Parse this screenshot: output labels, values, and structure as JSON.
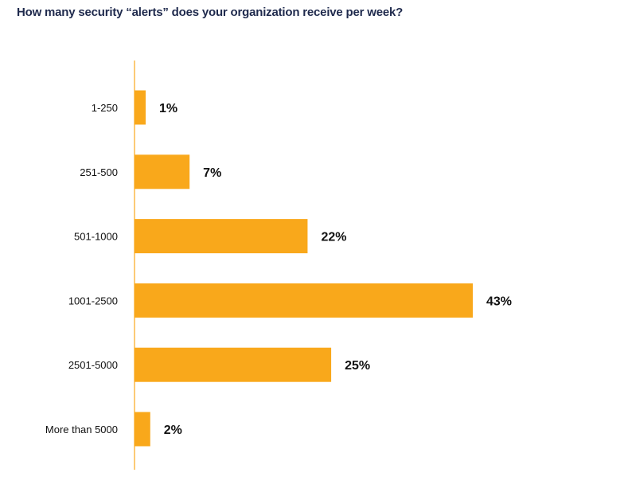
{
  "chart_data": {
    "type": "bar",
    "orientation": "horizontal",
    "title": "How many security “alerts” does your organization receive per week?",
    "categories": [
      "1-250",
      "251-500",
      "501-1000",
      "1001-2500",
      "2501-5000",
      "More than 5000"
    ],
    "values": [
      1,
      7,
      22,
      43,
      25,
      2
    ],
    "data_labels": [
      "1%",
      "7%",
      "22%",
      "43%",
      "25%",
      "2%"
    ],
    "unit": "%",
    "xlabel": "",
    "ylabel": "",
    "xlim": [
      0,
      45
    ],
    "grid": false,
    "legend": "none",
    "colors": {
      "bar": "#F9A81B",
      "axis": "#F9A81B",
      "title": "#1F2A4D"
    }
  }
}
